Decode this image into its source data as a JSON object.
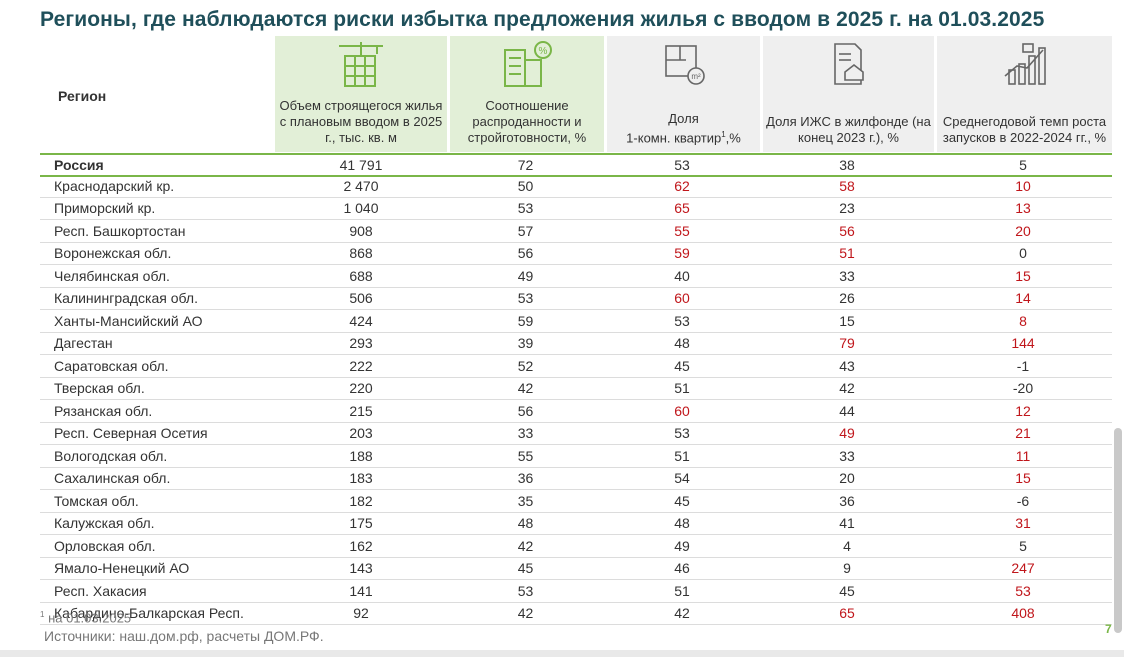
{
  "title": "Регионы, где наблюдаются риски избытка предложения жилья с вводом в 2025 г. на 01.03.2025",
  "header": {
    "region": "Регион",
    "col1": "Объем строящегося жилья с плановым вводом в 2025 г., тыс. кв. м",
    "col2": "Соотношение распроданности и стройготовности, %",
    "col3_main": "Доля\n1-комн. квартир",
    "col3_sup": "1",
    "col3_suffix": ",%",
    "col4": "Доля ИЖС в жилфонде (на конец 2023 г.), %",
    "col5": "Среднегодовой темп роста запусков в 2022-2024 гг., %",
    "icons": [
      "building-crane-icon",
      "building-percent-icon",
      "floorplan-m2-icon",
      "document-house-icon",
      "growth-chart-icon"
    ],
    "accent_color": "#7ab648",
    "highlight_color": "#c0161b"
  },
  "rows": [
    {
      "name": "Россия",
      "v1": "41 791",
      "v2": "72",
      "v3": "53",
      "v4": "38",
      "v5": "5",
      "r3": false,
      "r4": false,
      "r5": false,
      "bold": true
    },
    {
      "name": "Краснодарский кр.",
      "v1": "2 470",
      "v2": "50",
      "v3": "62",
      "v4": "58",
      "v5": "10",
      "r3": true,
      "r4": true,
      "r5": true
    },
    {
      "name": "Приморский кр.",
      "v1": "1 040",
      "v2": "53",
      "v3": "65",
      "v4": "23",
      "v5": "13",
      "r3": true,
      "r4": false,
      "r5": true
    },
    {
      "name": "Респ. Башкортостан",
      "v1": "908",
      "v2": "57",
      "v3": "55",
      "v4": "56",
      "v5": "20",
      "r3": true,
      "r4": true,
      "r5": true
    },
    {
      "name": "Воронежская обл.",
      "v1": "868",
      "v2": "56",
      "v3": "59",
      "v4": "51",
      "v5": "0",
      "r3": true,
      "r4": true,
      "r5": false
    },
    {
      "name": "Челябинская обл.",
      "v1": "688",
      "v2": "49",
      "v3": "40",
      "v4": "33",
      "v5": "15",
      "r3": false,
      "r4": false,
      "r5": true
    },
    {
      "name": "Калининградская обл.",
      "v1": "506",
      "v2": "53",
      "v3": "60",
      "v4": "26",
      "v5": "14",
      "r3": true,
      "r4": false,
      "r5": true
    },
    {
      "name": "Ханты-Мансийский АО",
      "v1": "424",
      "v2": "59",
      "v3": "53",
      "v4": "15",
      "v5": "8",
      "r3": false,
      "r4": false,
      "r5": true
    },
    {
      "name": "Дагестан",
      "v1": "293",
      "v2": "39",
      "v3": "48",
      "v4": "79",
      "v5": "144",
      "r3": false,
      "r4": true,
      "r5": true
    },
    {
      "name": "Саратовская обл.",
      "v1": "222",
      "v2": "52",
      "v3": "45",
      "v4": "43",
      "v5": "-1",
      "r3": false,
      "r4": false,
      "r5": false
    },
    {
      "name": "Тверская обл.",
      "v1": "220",
      "v2": "42",
      "v3": "51",
      "v4": "42",
      "v5": "-20",
      "r3": false,
      "r4": false,
      "r5": false
    },
    {
      "name": "Рязанская обл.",
      "v1": "215",
      "v2": "56",
      "v3": "60",
      "v4": "44",
      "v5": "12",
      "r3": true,
      "r4": false,
      "r5": true
    },
    {
      "name": "Респ. Северная Осетия",
      "v1": "203",
      "v2": "33",
      "v3": "53",
      "v4": "49",
      "v5": "21",
      "r3": false,
      "r4": true,
      "r5": true
    },
    {
      "name": "Вологодская обл.",
      "v1": "188",
      "v2": "55",
      "v3": "51",
      "v4": "33",
      "v5": "11",
      "r3": false,
      "r4": false,
      "r5": true
    },
    {
      "name": "Сахалинская обл.",
      "v1": "183",
      "v2": "36",
      "v3": "54",
      "v4": "20",
      "v5": "15",
      "r3": false,
      "r4": false,
      "r5": true
    },
    {
      "name": "Томская обл.",
      "v1": "182",
      "v2": "35",
      "v3": "45",
      "v4": "36",
      "v5": "-6",
      "r3": false,
      "r4": false,
      "r5": false
    },
    {
      "name": "Калужская обл.",
      "v1": "175",
      "v2": "48",
      "v3": "48",
      "v4": "41",
      "v5": "31",
      "r3": false,
      "r4": false,
      "r5": true
    },
    {
      "name": "Орловская обл.",
      "v1": "162",
      "v2": "42",
      "v3": "49",
      "v4": "4",
      "v5": "5",
      "r3": false,
      "r4": false,
      "r5": false
    },
    {
      "name": "Ямало-Ненецкий АО",
      "v1": "143",
      "v2": "45",
      "v3": "46",
      "v4": "9",
      "v5": "247",
      "r3": false,
      "r4": false,
      "r5": true
    },
    {
      "name": "Респ. Хакасия",
      "v1": "141",
      "v2": "53",
      "v3": "51",
      "v4": "45",
      "v5": "53",
      "r3": false,
      "r4": false,
      "r5": true
    },
    {
      "name": "Кабардино-Балкарская Респ.",
      "v1": "92",
      "v2": "42",
      "v3": "42",
      "v4": "65",
      "v5": "408",
      "r3": false,
      "r4": true,
      "r5": true
    }
  ],
  "footnote": {
    "sup": "1",
    "text": " на 01.03.2025"
  },
  "source": "Источники: наш.дом.рф, расчеты ДОМ.РФ.",
  "page_number": "7"
}
